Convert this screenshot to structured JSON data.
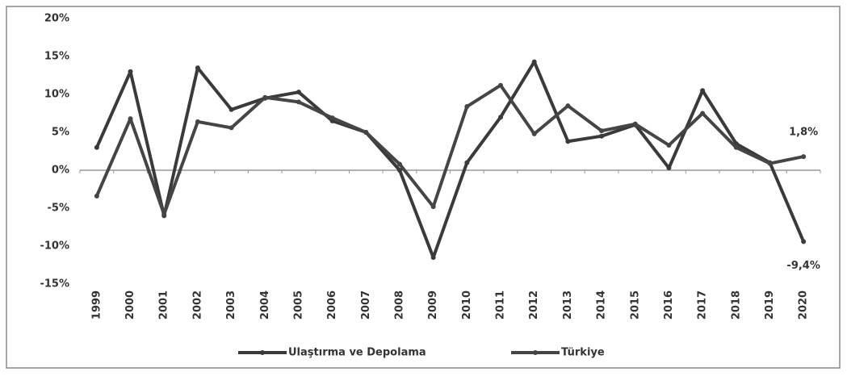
{
  "chart_data": {
    "type": "line",
    "categories": [
      "1999",
      "2000",
      "2001",
      "2002",
      "2003",
      "2004",
      "2005",
      "2006",
      "2007",
      "2008",
      "2009",
      "2010",
      "2011",
      "2012",
      "2013",
      "2014",
      "2015",
      "2016",
      "2017",
      "2018",
      "2019",
      "2020"
    ],
    "series": [
      {
        "name": "Ulaştırma ve Depolama",
        "color": "#3a3a3a",
        "values": [
          3,
          13,
          -6,
          13.5,
          8,
          9.5,
          10.3,
          6.5,
          5,
          0,
          -11.5,
          1,
          7,
          14.3,
          3.8,
          4.5,
          6,
          0.3,
          10.5,
          3.5,
          1,
          -9.4
        ],
        "value_labels": [
          null,
          null,
          null,
          null,
          null,
          null,
          null,
          null,
          null,
          null,
          null,
          null,
          null,
          null,
          null,
          null,
          null,
          null,
          null,
          null,
          null,
          "-9,4%"
        ]
      },
      {
        "name": "Türkiye",
        "color": "#454545",
        "values": [
          -3.4,
          6.8,
          -5.8,
          6.4,
          5.6,
          9.6,
          9,
          6.9,
          5,
          0.8,
          -4.8,
          8.4,
          11.2,
          4.8,
          8.5,
          5.2,
          6.1,
          3.3,
          7.5,
          3,
          0.9,
          1.8
        ],
        "value_labels": [
          null,
          null,
          null,
          null,
          null,
          null,
          null,
          null,
          null,
          null,
          null,
          null,
          null,
          null,
          null,
          null,
          null,
          null,
          null,
          null,
          null,
          "1,8%"
        ]
      }
    ],
    "ylim": [
      -15,
      20
    ],
    "yticks": [
      {
        "value": -15,
        "label": "-15%"
      },
      {
        "value": -10,
        "label": "-10%"
      },
      {
        "value": -5,
        "label": "-5%"
      },
      {
        "value": 0,
        "label": "0%"
      },
      {
        "value": 5,
        "label": "5%"
      },
      {
        "value": 10,
        "label": "10%"
      },
      {
        "value": 15,
        "label": "15%"
      },
      {
        "value": 20,
        "label": "20%"
      }
    ],
    "grid": false,
    "legend": "bottom"
  }
}
